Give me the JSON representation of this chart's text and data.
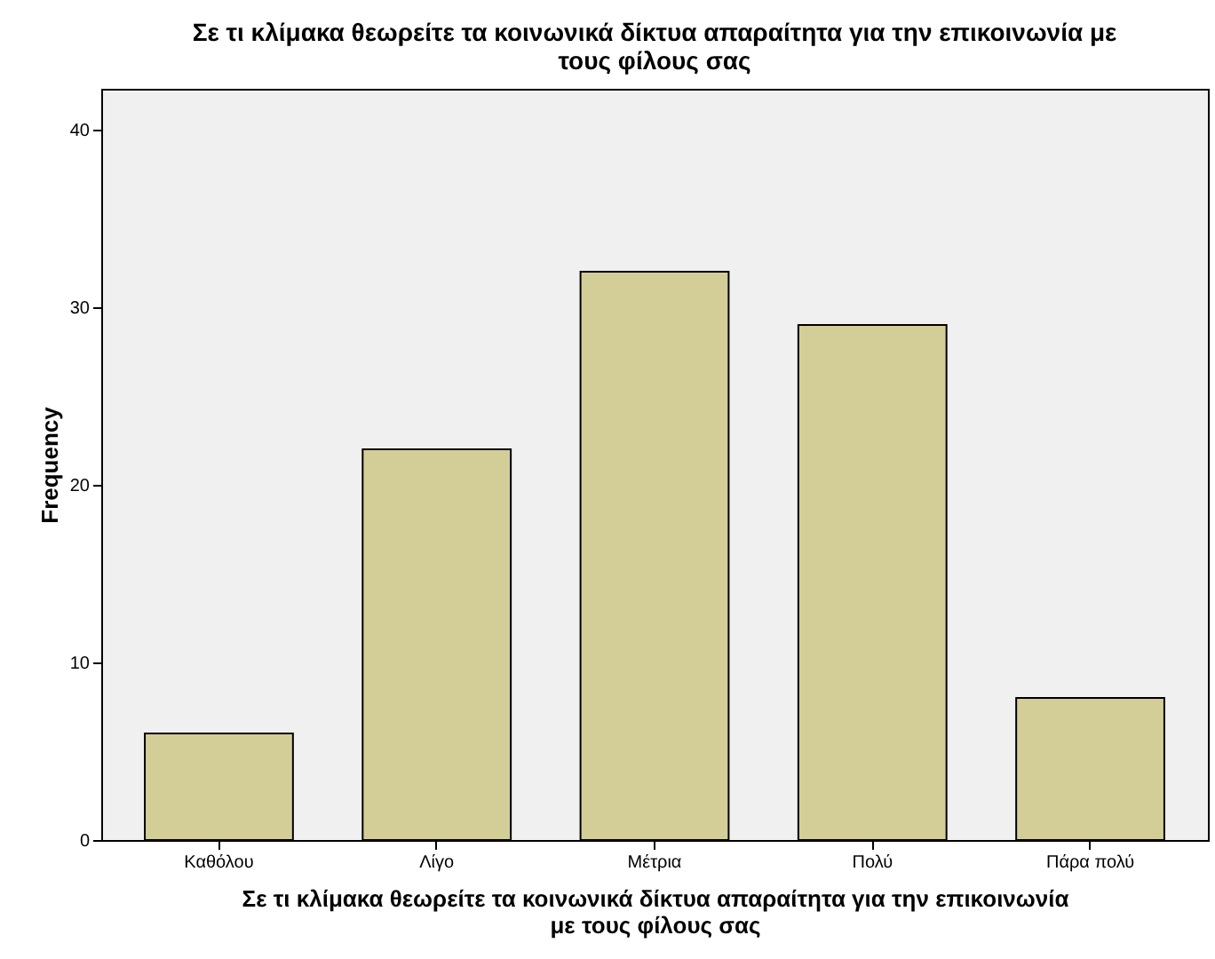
{
  "chart_data": {
    "type": "bar",
    "title": "Σε τι κλίμακα θεωρείτε τα κοινωνικά δίκτυα απαραίτητα για την επικοινωνία με τους φίλους σας",
    "xlabel": "Σε τι κλίμακα θεωρείτε τα κοινωνικά δίκτυα απαραίτητα για την επικοινωνία με τους φίλους σας",
    "ylabel": "Frequency",
    "categories": [
      "Καθόλου",
      "Λίγο",
      "Μέτρια",
      "Πολύ",
      "Πάρα πολύ"
    ],
    "values": [
      6,
      22,
      32,
      29,
      8
    ],
    "color": "#d3ce97",
    "ylim": [
      0,
      42.3
    ],
    "yticks": [
      0,
      10,
      20,
      30,
      40
    ],
    "grid": false
  }
}
